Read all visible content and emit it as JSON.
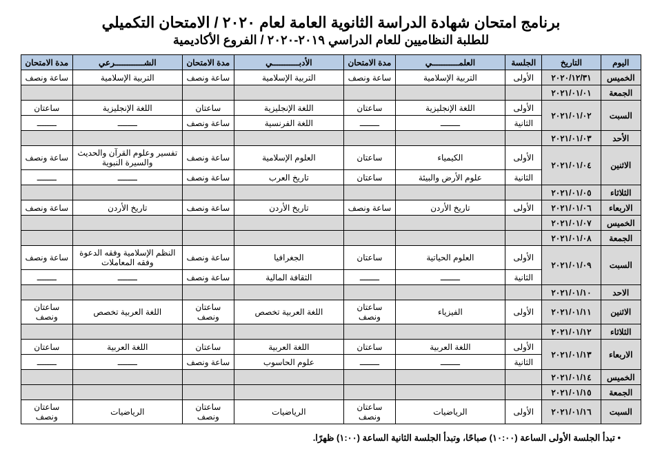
{
  "title1": "برنامج امتحان شهادة الدراسة الثانوية العامة لعام ٢٠٢٠ / الامتحان التكميلي",
  "title2": "للطلبة النظاميين للعام الدراسي ٢٠١٩-٢٠٢٠ / الفروع الأكاديمية",
  "headers": {
    "day": "اليوم",
    "date": "التاريخ",
    "session": "الجلسة",
    "sci": "العلمـــــــــــي",
    "sci_dur": "مدة الامتحان",
    "lit": "الأدبـــــــــــي",
    "lit_dur": "مدة الامتحان",
    "shr": "الشــــــــــــرعي",
    "shr_dur": "مدة الامتحان"
  },
  "days": [
    {
      "day": "الخميس",
      "date": "٢٠٢٠/١٢/٣١",
      "rows": [
        {
          "sess": "الأولى",
          "sci": "التربية الإسلامية",
          "sci_d": "ساعة ونصف",
          "lit": "التربية الإسلامية",
          "lit_d": "ساعة ونصف",
          "shr": "التربية الإسلامية",
          "shr_d": "ساعة ونصف"
        }
      ]
    },
    {
      "day": "الجمعة",
      "date": "٢٠٢١/٠١/٠١",
      "off": true,
      "rows": [
        {}
      ]
    },
    {
      "day": "السبت",
      "date": "٢٠٢١/٠١/٠٢",
      "rows": [
        {
          "sess": "الأولى",
          "sci": "اللغة الإنجليزية",
          "sci_d": "ساعتان",
          "lit": "اللغة الإنجليزية",
          "lit_d": "ساعتان",
          "shr": "اللغة الإنجليزية",
          "shr_d": "ساعتان"
        },
        {
          "sess": "الثانية",
          "sci": "ــــــــ",
          "sci_d": "ــــــــ",
          "lit": "اللغة الفرنسية",
          "lit_d": "ساعة ونصف",
          "shr": "ــــــــ",
          "shr_d": "ــــــــ"
        }
      ]
    },
    {
      "day": "الأحد",
      "date": "٢٠٢١/٠١/٠٣",
      "off": true,
      "rows": [
        {}
      ]
    },
    {
      "day": "الاثنين",
      "date": "٢٠٢١/٠١/٠٤",
      "rows": [
        {
          "sess": "الأولى",
          "sci": "الكيمياء",
          "sci_d": "ساعتان",
          "lit": "العلوم الإسلامية",
          "lit_d": "ساعة ونصف",
          "shr": "تفسير وعلوم القرآن والحديث والسيرة النبوية",
          "shr_d": "ساعة ونصف"
        },
        {
          "sess": "الثانية",
          "sci": "علوم الأرض والبيئة",
          "sci_d": "ساعتان",
          "lit": "تاريخ العرب",
          "lit_d": "ساعة ونصف",
          "shr": "ــــــــ",
          "shr_d": "ــــــــ"
        }
      ]
    },
    {
      "day": "الثلاثاء",
      "date": "٢٠٢١/٠١/٠٥",
      "off": true,
      "rows": [
        {}
      ]
    },
    {
      "day": "الاربعاء",
      "date": "٢٠٢١/٠١/٠٦",
      "rows": [
        {
          "sess": "الأولى",
          "sci": "تاريخ الأردن",
          "sci_d": "ساعة ونصف",
          "lit": "تاريخ الأردن",
          "lit_d": "ساعة ونصف",
          "shr": "تاريخ الأردن",
          "shr_d": "ساعة ونصف"
        }
      ]
    },
    {
      "day": "الخميس",
      "date": "٢٠٢١/٠١/٠٧",
      "off": true,
      "rows": [
        {}
      ]
    },
    {
      "day": "الجمعة",
      "date": "٢٠٢١/٠١/٠٨",
      "off": true,
      "rows": [
        {}
      ]
    },
    {
      "day": "السبت",
      "date": "٢٠٢١/٠١/٠٩",
      "rows": [
        {
          "sess": "الأولى",
          "sci": "العلوم الحياتية",
          "sci_d": "ساعتان",
          "lit": "الجغرافيا",
          "lit_d": "ساعة ونصف",
          "shr": "النظم الإسلامية وفقه الدعوة وفقه المعاملات",
          "shr_d": "ساعة ونصف"
        },
        {
          "sess": "الثانية",
          "sci": "ــــــــ",
          "sci_d": "ــــــــ",
          "lit": "الثقافة المالية",
          "lit_d": "ساعة ونصف",
          "shr": "ــــــــ",
          "shr_d": "ــــــــ"
        }
      ]
    },
    {
      "day": "الاحد",
      "date": "٢٠٢١/٠١/١٠",
      "off": true,
      "rows": [
        {}
      ]
    },
    {
      "day": "الاثنين",
      "date": "٢٠٢١/٠١/١١",
      "rows": [
        {
          "sess": "الأولى",
          "sci": "الفيزياء",
          "sci_d": "ساعتان ونصف",
          "lit": "اللغة العربية تخصص",
          "lit_d": "ساعتان ونصف",
          "shr": "اللغة العربية تخصص",
          "shr_d": "ساعتان ونصف"
        }
      ]
    },
    {
      "day": "الثلاثاء",
      "date": "٢٠٢١/٠١/١٢",
      "off": true,
      "rows": [
        {}
      ]
    },
    {
      "day": "الاربعاء",
      "date": "٢٠٢١/٠١/١٣",
      "rows": [
        {
          "sess": "الأولى",
          "sci": "اللغة العربية",
          "sci_d": "ساعتان",
          "lit": "اللغة العربية",
          "lit_d": "ساعتان",
          "shr": "اللغة العربية",
          "shr_d": "ساعتان"
        },
        {
          "sess": "الثانية",
          "sci": "ــــــــ",
          "sci_d": "ــــــــ",
          "lit": "علوم الحاسوب",
          "lit_d": "ساعة ونصف",
          "shr": "ــــــــ",
          "shr_d": "ــــــــ"
        }
      ]
    },
    {
      "day": "الخميس",
      "date": "٢٠٢١/٠١/١٤",
      "off": true,
      "rows": [
        {}
      ]
    },
    {
      "day": "الجمعة",
      "date": "٢٠٢١/٠١/١٥",
      "off": true,
      "rows": [
        {}
      ]
    },
    {
      "day": "السبت",
      "date": "٢٠٢١/٠١/١٦",
      "rows": [
        {
          "sess": "الأولى",
          "sci": "الرياضيات",
          "sci_d": "ساعتان ونصف",
          "lit": "الرياضيات",
          "lit_d": "ساعتان ونصف",
          "shr": "الرياضيات",
          "shr_d": "ساعتان ونصف"
        }
      ]
    }
  ],
  "footnote": "تبدأ الجلسة الأولى الساعة (١٠:٠٠) صباحًا، وتبدأ الجلسة الثانية الساعة (١:٠٠) ظهرًا.",
  "colors": {
    "header_bg": "#b8cce4",
    "grey_bg": "#d9d9d9",
    "border": "#000000",
    "text": "#000000"
  }
}
